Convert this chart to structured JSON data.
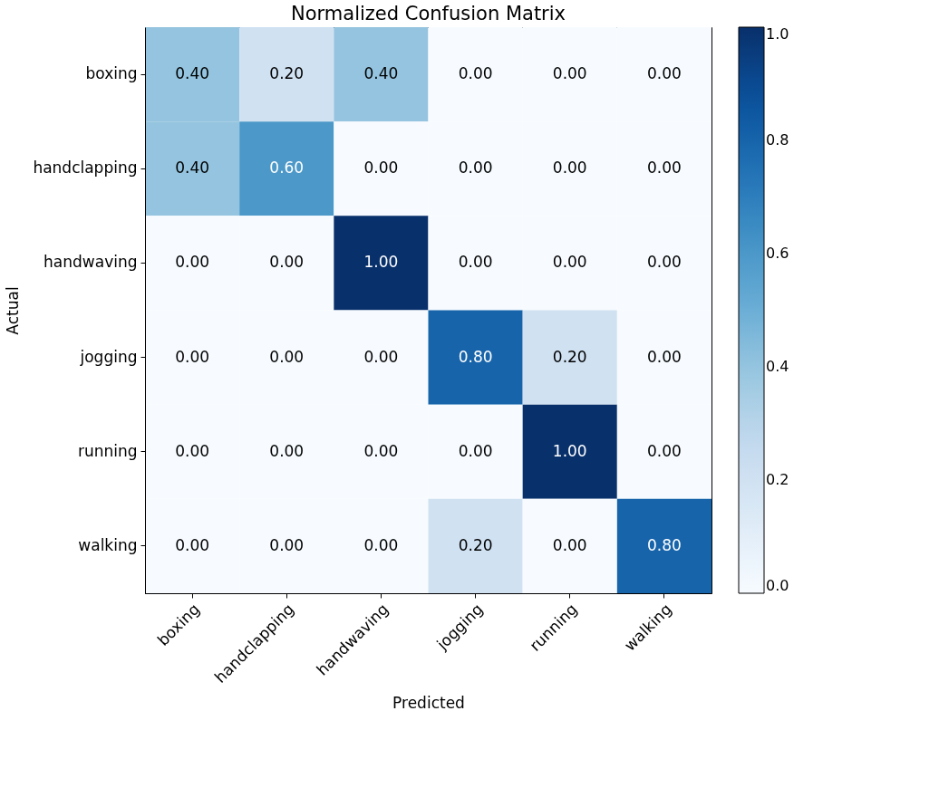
{
  "chart_data": {
    "type": "heatmap",
    "title": "Normalized Confusion Matrix",
    "xlabel": "Predicted",
    "ylabel": "Actual",
    "categories": [
      "boxing",
      "handclapping",
      "handwaving",
      "jogging",
      "running",
      "walking"
    ],
    "y_categories": [
      "boxing",
      "handclapping",
      "handwaving",
      "jogging",
      "running",
      "walking"
    ],
    "cells": [
      [
        0.4,
        0.2,
        0.4,
        0,
        0,
        0
      ],
      [
        0.4,
        0.6,
        0,
        0,
        0,
        0
      ],
      [
        0,
        0,
        1,
        0,
        0,
        0
      ],
      [
        0,
        0,
        0,
        0.8,
        0.2,
        0
      ],
      [
        0,
        0,
        0,
        0,
        1,
        0
      ],
      [
        0,
        0,
        0,
        0.2,
        0,
        0.8
      ]
    ],
    "cell_labels": [
      [
        "0.40",
        "0.20",
        "0.40",
        "0.00",
        "0.00",
        "0.00"
      ],
      [
        "0.40",
        "0.60",
        "0.00",
        "0.00",
        "0.00",
        "0.00"
      ],
      [
        "0.00",
        "0.00",
        "1.00",
        "0.00",
        "0.00",
        "0.00"
      ],
      [
        "0.00",
        "0.00",
        "0.00",
        "0.80",
        "0.20",
        "0.00"
      ],
      [
        "0.00",
        "0.00",
        "0.00",
        "0.00",
        "1.00",
        "0.00"
      ],
      [
        "0.00",
        "0.00",
        "0.00",
        "0.20",
        "0.00",
        "0.80"
      ]
    ],
    "clim": [
      0,
      1
    ],
    "cticks": [
      {
        "value": 0,
        "label": "0.0"
      },
      {
        "value": 0.2,
        "label": "0.2"
      },
      {
        "value": 0.4,
        "label": "0.4"
      },
      {
        "value": 0.6,
        "label": "0.6"
      },
      {
        "value": 0.8,
        "label": "0.8"
      },
      {
        "value": 1,
        "label": "1.0"
      }
    ]
  }
}
